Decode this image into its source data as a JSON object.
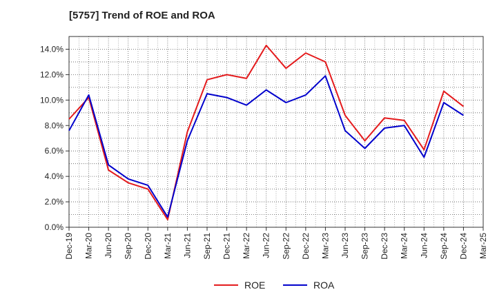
{
  "chart_data": {
    "type": "line",
    "title": "[5757]  Trend of ROE and ROA",
    "xlabel": "",
    "ylabel": "",
    "x": [
      "Dec-19",
      "Mar-20",
      "Jun-20",
      "Sep-20",
      "Dec-20",
      "Mar-21",
      "Jun-21",
      "Sep-21",
      "Dec-21",
      "Mar-22",
      "Jun-22",
      "Sep-22",
      "Dec-22",
      "Mar-23",
      "Jun-23",
      "Sep-23",
      "Dec-23",
      "Mar-24",
      "Jun-24",
      "Sep-24",
      "Dec-24",
      "Mar-25"
    ],
    "ylim": [
      0,
      15
    ],
    "yticks": [
      0,
      2,
      4,
      6,
      8,
      10,
      12,
      14
    ],
    "ytick_labels": [
      "0.0%",
      "2.0%",
      "4.0%",
      "6.0%",
      "8.0%",
      "10.0%",
      "12.0%",
      "14.0%"
    ],
    "grid": true,
    "legend_position": "bottom-center",
    "series": [
      {
        "name": "ROE",
        "color": "#e41a1c",
        "values": [
          8.5,
          10.2,
          4.5,
          3.5,
          3.0,
          0.6,
          7.5,
          11.6,
          12.0,
          11.7,
          14.3,
          12.5,
          13.7,
          13.0,
          8.8,
          6.8,
          8.6,
          8.4,
          6.1,
          10.7,
          9.5,
          null
        ]
      },
      {
        "name": "ROA",
        "color": "#0000cc",
        "values": [
          7.6,
          10.4,
          4.9,
          3.8,
          3.3,
          0.8,
          6.8,
          10.5,
          10.2,
          9.6,
          10.8,
          9.8,
          10.4,
          11.9,
          7.6,
          6.2,
          7.8,
          8.0,
          5.5,
          9.8,
          8.8,
          null
        ]
      }
    ]
  }
}
